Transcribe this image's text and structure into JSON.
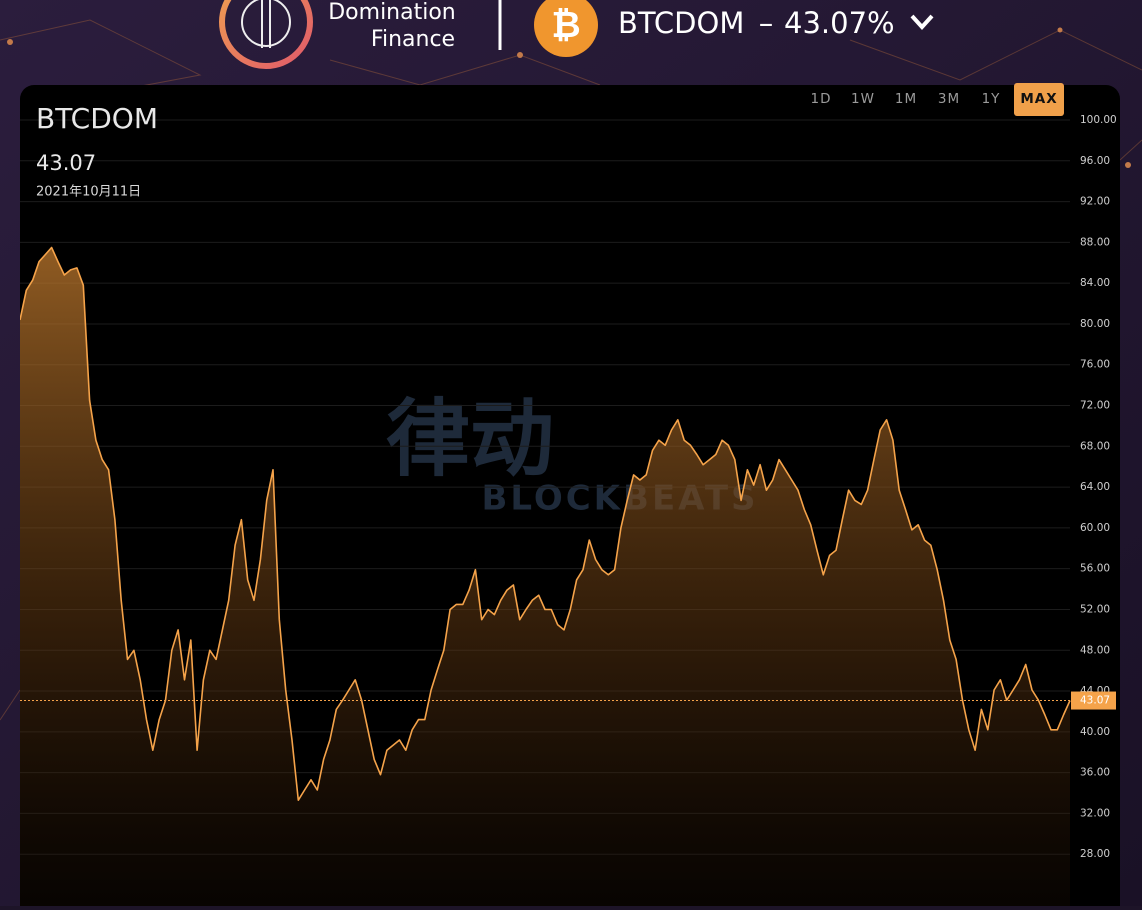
{
  "header": {
    "brand_line1": "Domination",
    "brand_line2": "Finance",
    "coin_symbol": "₿",
    "pair": "BTCDOM",
    "separator": "–",
    "price": "43.07%"
  },
  "range_buttons": [
    "1D",
    "1W",
    "1M",
    "3M",
    "1Y",
    "MAX"
  ],
  "active_range": 5,
  "watermark": {
    "cn": "律动",
    "en": "BLOCKBEATS"
  },
  "chart_data": {
    "type": "area",
    "title": "BTCDOM",
    "current_value": 43.07,
    "subtitle": "2021年10月11日",
    "color": "#f5a34a",
    "grid": true,
    "ylim": [
      24,
      103.5
    ],
    "yticks": [
      {
        "value": 28,
        "label": "28.00"
      },
      {
        "value": 32,
        "label": "32.00"
      },
      {
        "value": 36,
        "label": "36.00"
      },
      {
        "value": 40,
        "label": "40.00"
      },
      {
        "value": 44,
        "label": "44.00"
      },
      {
        "value": 48,
        "label": "48.00"
      },
      {
        "value": 52,
        "label": "52.00"
      },
      {
        "value": 56,
        "label": "56.00"
      },
      {
        "value": 60,
        "label": "60.00"
      },
      {
        "value": 64,
        "label": "64.00"
      },
      {
        "value": 68,
        "label": "68.00"
      },
      {
        "value": 72,
        "label": "72.00"
      },
      {
        "value": 76,
        "label": "76.00"
      },
      {
        "value": 80,
        "label": "80.00"
      },
      {
        "value": 84,
        "label": "84.00"
      },
      {
        "value": 88,
        "label": "88.00"
      },
      {
        "value": 92,
        "label": "92.00"
      },
      {
        "value": 96,
        "label": "96.00"
      },
      {
        "value": 100,
        "label": "100.00"
      }
    ],
    "values": [
      80.4,
      83.3,
      84.3,
      86.1,
      86.8,
      87.5,
      86.1,
      84.8,
      85.3,
      85.5,
      83.8,
      72.5,
      68.6,
      66.7,
      65.7,
      60.8,
      52.9,
      47.1,
      48.0,
      45.1,
      41.2,
      38.2,
      41.2,
      43.1,
      48.0,
      50.0,
      45.1,
      49.0,
      38.2,
      45.1,
      48.0,
      47.1,
      50.0,
      52.9,
      58.3,
      60.8,
      54.9,
      52.9,
      56.9,
      62.7,
      65.7,
      51.0,
      44.1,
      39.2,
      33.3,
      34.3,
      35.3,
      34.3,
      37.3,
      39.2,
      42.2,
      43.1,
      44.1,
      45.1,
      43.1,
      40.2,
      37.3,
      35.8,
      38.2,
      38.7,
      39.2,
      38.2,
      40.2,
      41.2,
      41.2,
      44.1,
      46.1,
      48.0,
      52.0,
      52.5,
      52.5,
      53.9,
      55.9,
      51.0,
      52.0,
      51.5,
      52.9,
      53.9,
      54.4,
      51.0,
      52.0,
      52.9,
      53.4,
      52.0,
      52.0,
      50.5,
      50.0,
      52.0,
      54.9,
      55.9,
      58.8,
      56.9,
      55.9,
      55.4,
      55.9,
      60.0,
      62.7,
      65.2,
      64.7,
      65.2,
      67.6,
      68.6,
      68.1,
      69.6,
      70.6,
      68.6,
      68.1,
      67.2,
      66.2,
      66.7,
      67.2,
      68.6,
      68.1,
      66.7,
      62.7,
      65.7,
      64.2,
      66.2,
      63.7,
      64.7,
      66.7,
      65.7,
      64.7,
      63.7,
      61.8,
      60.3,
      57.8,
      55.4,
      57.3,
      57.8,
      60.8,
      63.7,
      62.7,
      62.3,
      63.7,
      66.7,
      69.6,
      70.6,
      68.6,
      63.7,
      61.8,
      59.8,
      60.3,
      58.8,
      58.3,
      55.9,
      52.9,
      49.0,
      47.1,
      43.1,
      40.2,
      38.2,
      42.2,
      40.2,
      44.1,
      45.1,
      43.1,
      44.1,
      45.1,
      46.6,
      44.1,
      43.1,
      41.7,
      40.2,
      40.2,
      41.7,
      43.07
    ]
  }
}
